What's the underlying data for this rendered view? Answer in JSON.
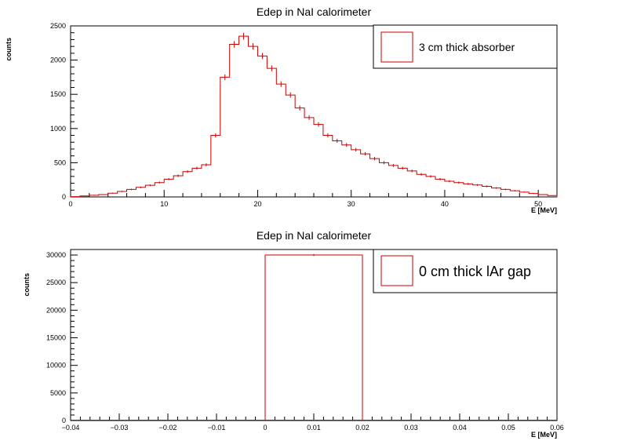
{
  "chart_data": [
    {
      "type": "histogram",
      "title": "Edep in NaI calorimeter",
      "xlabel": "E [MeV]",
      "ylabel": "counts",
      "xlim": [
        0,
        52
      ],
      "ylim": [
        0,
        2500
      ],
      "xticks": [
        0,
        10,
        20,
        30,
        40,
        50
      ],
      "yticks": [
        0,
        500,
        1000,
        1500,
        2000,
        2500
      ],
      "bin_width": 1,
      "bin_start": 0,
      "color": "#cc0000",
      "legend": {
        "label": "3 cm thick absorber",
        "position": "top-right"
      },
      "values": [
        5,
        15,
        25,
        35,
        55,
        80,
        110,
        140,
        170,
        210,
        260,
        310,
        370,
        420,
        470,
        900,
        1750,
        2230,
        2350,
        2200,
        2060,
        1880,
        1650,
        1490,
        1300,
        1160,
        1060,
        900,
        820,
        760,
        690,
        630,
        560,
        500,
        460,
        420,
        380,
        330,
        300,
        260,
        230,
        210,
        190,
        175,
        155,
        130,
        110,
        90,
        70,
        50,
        35,
        20
      ]
    },
    {
      "type": "histogram",
      "title": "Edep in NaI calorimeter",
      "xlabel": "E [MeV]",
      "ylabel": "counts",
      "xlim": [
        -0.04,
        0.06
      ],
      "ylim": [
        0,
        31000
      ],
      "xticks": [
        -0.04,
        -0.03,
        -0.02,
        -0.01,
        0,
        0.01,
        0.02,
        0.03,
        0.04,
        0.05,
        0.06
      ],
      "xtick_labels": [
        "−0.04",
        "−0.03",
        "−0.02",
        "−0.01",
        "0",
        "0.01",
        "0.02",
        "0.03",
        "0.04",
        "0.05",
        "0.06"
      ],
      "yticks": [
        0,
        5000,
        10000,
        15000,
        20000,
        25000,
        30000
      ],
      "color": "#cc0000",
      "legend": {
        "label": "0 cm thick lAr gap",
        "position": "top-right"
      },
      "bins": [
        {
          "x0": 0,
          "x1": 0.02,
          "value": 30000
        }
      ]
    }
  ]
}
